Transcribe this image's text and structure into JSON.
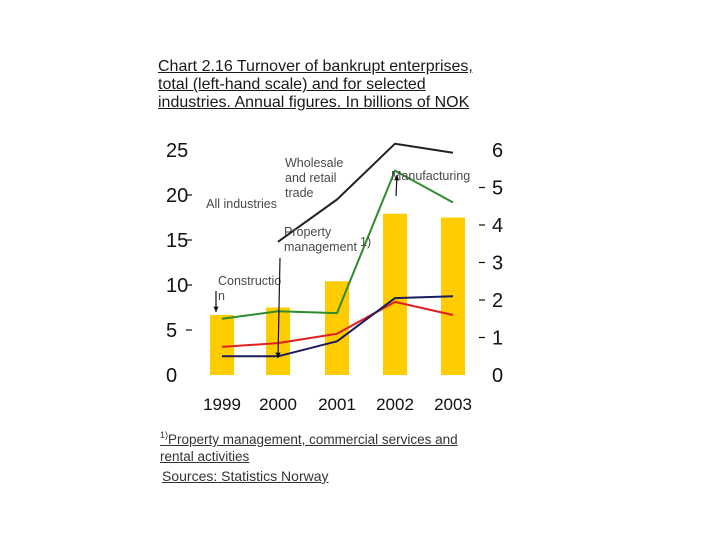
{
  "chart_data": {
    "type": "bar+line",
    "title": "Chart 2.16 Turnover of bankrupt enterprises, total (left-hand scale) and for selected industries. Annual figures. In billions of NOK",
    "categories": [
      "1999",
      "2000",
      "2001",
      "2002",
      "2003"
    ],
    "left_axis": {
      "ylim": [
        0,
        25
      ],
      "ticks": [
        "0",
        "5",
        "10",
        "15",
        "20",
        "25"
      ]
    },
    "right_axis": {
      "ylim": [
        0,
        6
      ],
      "ticks": [
        "0",
        "1",
        "2",
        "3",
        "4",
        "5",
        "6"
      ]
    },
    "bars": {
      "axis": "right",
      "values": [
        1.6,
        1.8,
        2.5,
        4.3,
        4.2
      ],
      "color": "#FFCC00"
    },
    "series": [
      {
        "axis": "left",
        "color": "#222222",
        "values": [
          null,
          14.8,
          19.5,
          25.7,
          24.7
        ]
      },
      {
        "axis": "right",
        "color": "#2E8B2E",
        "values": [
          1.5,
          1.7,
          1.65,
          5.45,
          4.6
        ]
      },
      {
        "axis": "right",
        "color": "#E02020",
        "values": [
          0.75,
          0.85,
          1.1,
          1.95,
          1.6
        ]
      },
      {
        "axis": "right",
        "color": "#1A1A5E",
        "values": [
          0.5,
          0.5,
          0.9,
          2.05,
          2.1
        ]
      }
    ],
    "annotations": {
      "wholesale": [
        "Wholesale",
        "and retail",
        "trade"
      ],
      "manufacturing": "Manufacturing",
      "all_industries": "All industries",
      "property": [
        "Property",
        "management"
      ],
      "property_sup": "1)",
      "construction": [
        "Constructio",
        "n"
      ]
    },
    "footnote_mark": "1)",
    "footnote": [
      "Property management, commercial services and",
      "rental activities"
    ],
    "source": "Sources: Statistics Norway"
  }
}
